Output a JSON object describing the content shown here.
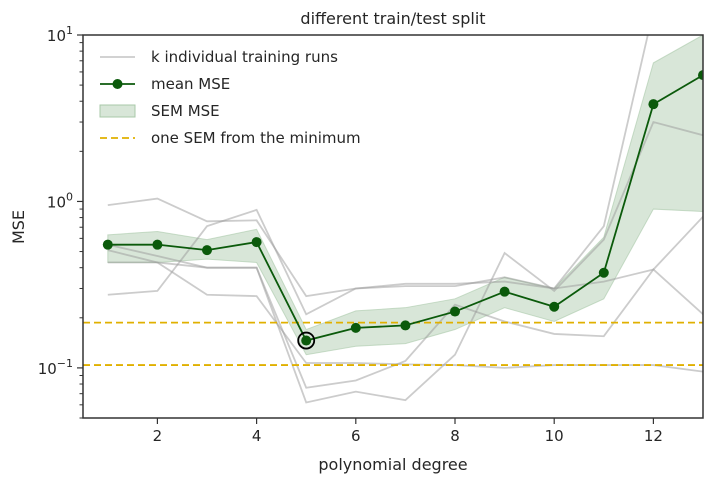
{
  "chart_data": {
    "type": "line",
    "title": "different train/test split",
    "xlabel": "polynomial degree",
    "ylabel": "MSE",
    "xlim": [
      0.5,
      13
    ],
    "ylim": [
      0.05,
      10
    ],
    "yscale": "log",
    "grid": false,
    "legend_placement": "top-left",
    "x": [
      1,
      2,
      3,
      4,
      5,
      6,
      7,
      8,
      9,
      10,
      11,
      12,
      13
    ],
    "xticks": [
      2,
      4,
      6,
      8,
      10,
      12
    ],
    "xtick_labels": [
      "2",
      "4",
      "6",
      "8",
      "10",
      "12"
    ],
    "yticks": [
      {
        "value": 0.1,
        "base": "10",
        "exp": "−1"
      },
      {
        "value": 1,
        "base": "10",
        "exp": "0"
      },
      {
        "value": 10,
        "base": "10",
        "exp": "1"
      }
    ],
    "legend": [
      {
        "label": "k individual training runs",
        "kind": "runs"
      },
      {
        "label": "mean MSE",
        "kind": "mean"
      },
      {
        "label": "SEM MSE",
        "kind": "sem"
      },
      {
        "label": "one SEM from the minimum",
        "kind": "threshold"
      }
    ],
    "runs": [
      [
        0.95,
        1.04,
        0.76,
        0.77,
        0.27,
        0.3,
        0.31,
        0.31,
        0.35,
        0.3,
        0.71,
        14,
        40
      ],
      [
        0.55,
        0.47,
        0.4,
        0.4,
        0.076,
        0.084,
        0.11,
        0.24,
        0.19,
        0.16,
        0.155,
        0.39,
        0.21
      ],
      [
        0.275,
        0.29,
        0.71,
        0.89,
        0.21,
        0.3,
        0.32,
        0.32,
        0.33,
        0.3,
        0.33,
        0.39,
        0.81
      ],
      [
        0.51,
        0.43,
        0.275,
        0.27,
        0.107,
        0.107,
        0.105,
        0.104,
        0.1,
        0.104,
        0.104,
        0.104,
        0.095
      ],
      [
        0.43,
        0.43,
        0.4,
        0.4,
        0.062,
        0.072,
        0.064,
        0.12,
        0.49,
        0.29,
        0.59,
        3.0,
        2.5
      ]
    ],
    "mean_mse": [
      0.55,
      0.55,
      0.51,
      0.57,
      0.146,
      0.174,
      0.18,
      0.218,
      0.287,
      0.233,
      0.373,
      3.84,
      5.74
    ],
    "sem_upper": [
      0.63,
      0.66,
      0.59,
      0.68,
      0.17,
      0.22,
      0.23,
      0.26,
      0.35,
      0.3,
      0.61,
      6.8,
      10.0
    ],
    "sem_lower": [
      0.43,
      0.43,
      0.45,
      0.43,
      0.12,
      0.135,
      0.14,
      0.17,
      0.23,
      0.19,
      0.26,
      0.9,
      0.87
    ],
    "minimum_degree": 5,
    "threshold_lines": [
      0.187,
      0.104
    ],
    "colors": {
      "runs": "#b0b0b0",
      "mean": "#0b5a0b",
      "sem": "#a8c8a8",
      "threshold": "#e0b000",
      "axes": "#333333"
    }
  }
}
